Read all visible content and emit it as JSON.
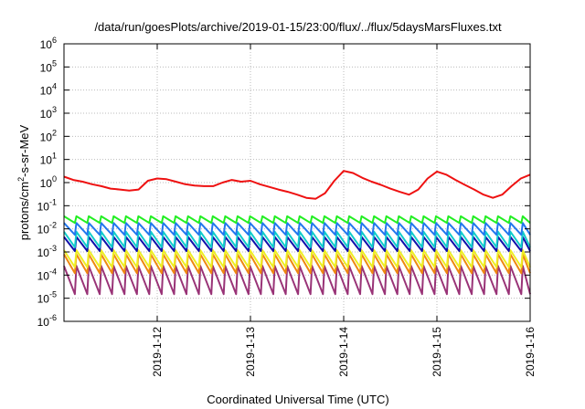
{
  "chart_data": {
    "type": "line",
    "title": "/data/run/goesPlots/archive/2019-01-15/23:00/flux/../flux/5daysMarsFluxes.txt",
    "xlabel": "Coordinated Universal Time (UTC)",
    "ylabel": {
      "main": "protons/cm",
      "sup": "2",
      "rest": "-s-sr-MeV"
    },
    "yscale": "log",
    "ylim": [
      1e-06,
      1000000.0
    ],
    "xlim": [
      "2019-01-11",
      "2019-01-16"
    ],
    "grid": true,
    "legend": "none",
    "y_ticks": [
      {
        "exp": -6
      },
      {
        "exp": -5
      },
      {
        "exp": -4
      },
      {
        "exp": -3
      },
      {
        "exp": -2
      },
      {
        "exp": -1
      },
      {
        "exp": 0
      },
      {
        "exp": 1
      },
      {
        "exp": 2
      },
      {
        "exp": 3
      },
      {
        "exp": 4
      },
      {
        "exp": 5
      },
      {
        "exp": 6
      }
    ],
    "y_tick_base": "10",
    "x_ticks": [
      {
        "label": "2019-1-12",
        "day": 1
      },
      {
        "label": "2019-1-13",
        "day": 2
      },
      {
        "label": "2019-1-14",
        "day": 3
      },
      {
        "label": "2019-1-15",
        "day": 4
      },
      {
        "label": "2019-1-16",
        "day": 5
      }
    ],
    "x_days": [
      0,
      0.1,
      0.2,
      0.3,
      0.4,
      0.5,
      0.6,
      0.7,
      0.8,
      0.9,
      1.0,
      1.1,
      1.2,
      1.3,
      1.4,
      1.5,
      1.6,
      1.7,
      1.8,
      1.9,
      2.0,
      2.1,
      2.2,
      2.3,
      2.4,
      2.5,
      2.6,
      2.7,
      2.8,
      2.9,
      3.0,
      3.1,
      3.2,
      3.3,
      3.4,
      3.5,
      3.6,
      3.7,
      3.8,
      3.9,
      4.0,
      4.1,
      4.2,
      4.3,
      4.4,
      4.5,
      4.6,
      4.7,
      4.8,
      4.9,
      5.0
    ],
    "series": [
      {
        "color": "#ee1111",
        "sawtooth": false,
        "values": [
          1.8,
          1.3,
          1.1,
          0.85,
          0.7,
          0.55,
          0.5,
          0.45,
          0.5,
          1.2,
          1.5,
          1.4,
          1.1,
          0.85,
          0.75,
          0.7,
          0.7,
          1.0,
          1.3,
          1.1,
          1.2,
          0.85,
          0.65,
          0.5,
          0.4,
          0.3,
          0.22,
          0.2,
          0.35,
          1.2,
          3.2,
          2.6,
          1.6,
          1.1,
          0.8,
          0.55,
          0.4,
          0.3,
          0.5,
          1.5,
          3.0,
          2.2,
          1.3,
          0.8,
          0.5,
          0.3,
          0.22,
          0.3,
          0.7,
          1.5,
          2.2
        ]
      },
      {
        "color": "#22ee22",
        "sawtooth": true,
        "period": 0.133,
        "high": 0.035,
        "low": 0.018
      },
      {
        "color": "#2277ee",
        "sawtooth": true,
        "period": 0.133,
        "high": 0.018,
        "low": 0.0055
      },
      {
        "color": "#11cccc",
        "sawtooth": true,
        "period": 0.133,
        "high": 0.0075,
        "low": 0.0016
      },
      {
        "color": "#1111aa",
        "sawtooth": true,
        "period": 0.133,
        "high": 0.0045,
        "low": 0.0011
      },
      {
        "color": "#eeee22",
        "sawtooth": true,
        "period": 0.133,
        "high": 0.0012,
        "low": 0.00022
      },
      {
        "color": "#ee8811",
        "sawtooth": true,
        "period": 0.133,
        "high": 0.0008,
        "low": 0.00012
      },
      {
        "color": "#993377",
        "sawtooth": true,
        "period": 0.133,
        "high": 0.00025,
        "low": 1.5e-05
      }
    ]
  }
}
